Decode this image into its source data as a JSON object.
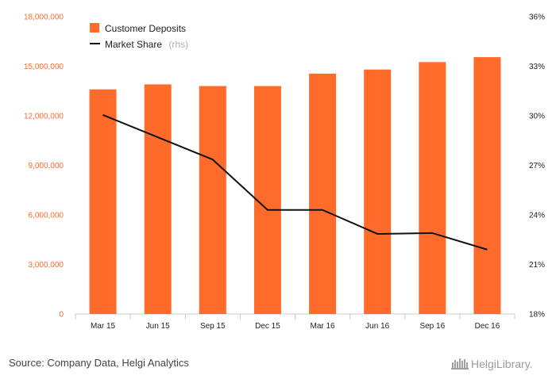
{
  "chart_data": {
    "type": "bar",
    "categories": [
      "Mar 15",
      "Jun 15",
      "Sep 15",
      "Dec 15",
      "Mar 16",
      "Jun 16",
      "Sep 16",
      "Dec 16"
    ],
    "series": [
      {
        "name": "Customer Deposits",
        "type": "bar",
        "axis": "left",
        "color": "#ff6b2b",
        "values": [
          13600000,
          13900000,
          13800000,
          13800000,
          14550000,
          14800000,
          15250000,
          15550000
        ]
      },
      {
        "name": "Market Share",
        "type": "line",
        "axis": "right",
        "color": "#111111",
        "values": [
          30.05,
          28.7,
          27.35,
          24.3,
          24.3,
          22.85,
          22.9,
          21.9
        ]
      }
    ],
    "legend": {
      "bar_label": "Customer Deposits",
      "line_label": "Market Share",
      "line_suffix": "(rhs)",
      "placement": "top-left"
    },
    "y_left": {
      "min": 0,
      "max": 18000000,
      "ticks": [
        0,
        3000000,
        6000000,
        9000000,
        12000000,
        15000000,
        18000000
      ],
      "tick_labels": [
        "0",
        "3,000,000",
        "6,000,000",
        "9,000,000",
        "12,000,000",
        "15,000,000",
        "18,000,000"
      ],
      "color": "#ff6b2b"
    },
    "y_right": {
      "min": 18,
      "max": 36,
      "ticks": [
        18,
        21,
        24,
        27,
        30,
        33,
        36
      ],
      "tick_labels": [
        "18%",
        "21%",
        "24%",
        "27%",
        "30%",
        "33%",
        "36%"
      ]
    },
    "grid": false
  },
  "footer": {
    "source": "Source: Company Data, Helgi Analytics",
    "logo_text": "HelgiLibrary."
  }
}
